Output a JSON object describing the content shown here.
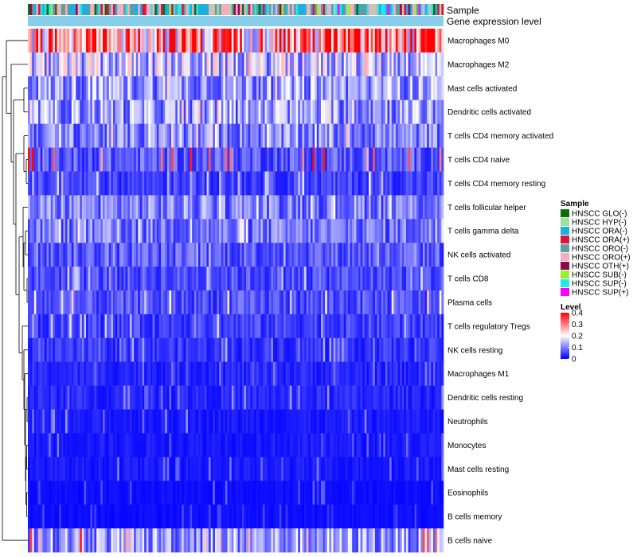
{
  "chart_data": {
    "type": "heatmap",
    "title": "",
    "annotations": {
      "sample_track_label": "Sample",
      "expression_track_label": "Gene expression level"
    },
    "rows": [
      "Macrophages M0",
      "Macrophages M2",
      "Mast cells activated",
      "Dendritic cells activated",
      "T cells CD4 memory activated",
      "T cells CD4 naive",
      "T cells CD4 memory resting",
      "T cells follicular helper",
      "T cells gamma delta",
      "NK cells activated",
      "T cells CD8",
      "Plasma cells",
      "T cells regulatory  Tregs",
      "NK cells resting",
      "Macrophages M1",
      "Dendritic cells resting",
      "Neutrophils",
      "Monocytes",
      "Mast cells resting",
      "Eosinophils",
      "B cells memory",
      "B cells naive"
    ],
    "row_levels_estimate": [
      0.3,
      0.15,
      0.12,
      0.12,
      0.1,
      0.07,
      0.05,
      0.1,
      0.09,
      0.07,
      0.06,
      0.06,
      0.05,
      0.04,
      0.03,
      0.03,
      0.02,
      0.02,
      0.02,
      0.01,
      0.01,
      0.12
    ],
    "row_max_estimate": [
      0.4,
      0.28,
      0.25,
      0.26,
      0.26,
      0.4,
      0.2,
      0.2,
      0.22,
      0.16,
      0.18,
      0.25,
      0.18,
      0.14,
      0.1,
      0.12,
      0.12,
      0.1,
      0.1,
      0.08,
      0.06,
      0.4
    ],
    "n_samples": 200,
    "legend_sample": {
      "title": "Sample",
      "entries": [
        {
          "label": "HNSCC GLO(-)",
          "color": "#0a6e0a"
        },
        {
          "label": "HNSCC HYP(-)",
          "color": "#9be29b"
        },
        {
          "label": "HNSCC ORA(-)",
          "color": "#1faee0"
        },
        {
          "label": "HNSCC ORA(+)",
          "color": "#dc143c"
        },
        {
          "label": "HNSCC ORO(-)",
          "color": "#5f9ea0"
        },
        {
          "label": "HNSCC ORO(+)",
          "color": "#f4aebf"
        },
        {
          "label": "HNSCC OTH(+)",
          "color": "#8b0a50"
        },
        {
          "label": "HNSCC SUB(-)",
          "color": "#9cf02a"
        },
        {
          "label": "HNSCC SUP(-)",
          "color": "#25e8e8"
        },
        {
          "label": "HNSCC SUP(+)",
          "color": "#ff00ff"
        }
      ]
    },
    "legend_level": {
      "title": "Level",
      "ticks": [
        0.4,
        0.3,
        0.2,
        0.1,
        0
      ],
      "tick_labels": [
        "0.4",
        "0.3",
        "0.2",
        "0.1",
        "0"
      ],
      "range": [
        0,
        0.4
      ],
      "colors": {
        "low": "#0000ff",
        "mid": "#ffffff",
        "high": "#ff0000"
      }
    },
    "expression_track_color": "#87ceeb"
  }
}
